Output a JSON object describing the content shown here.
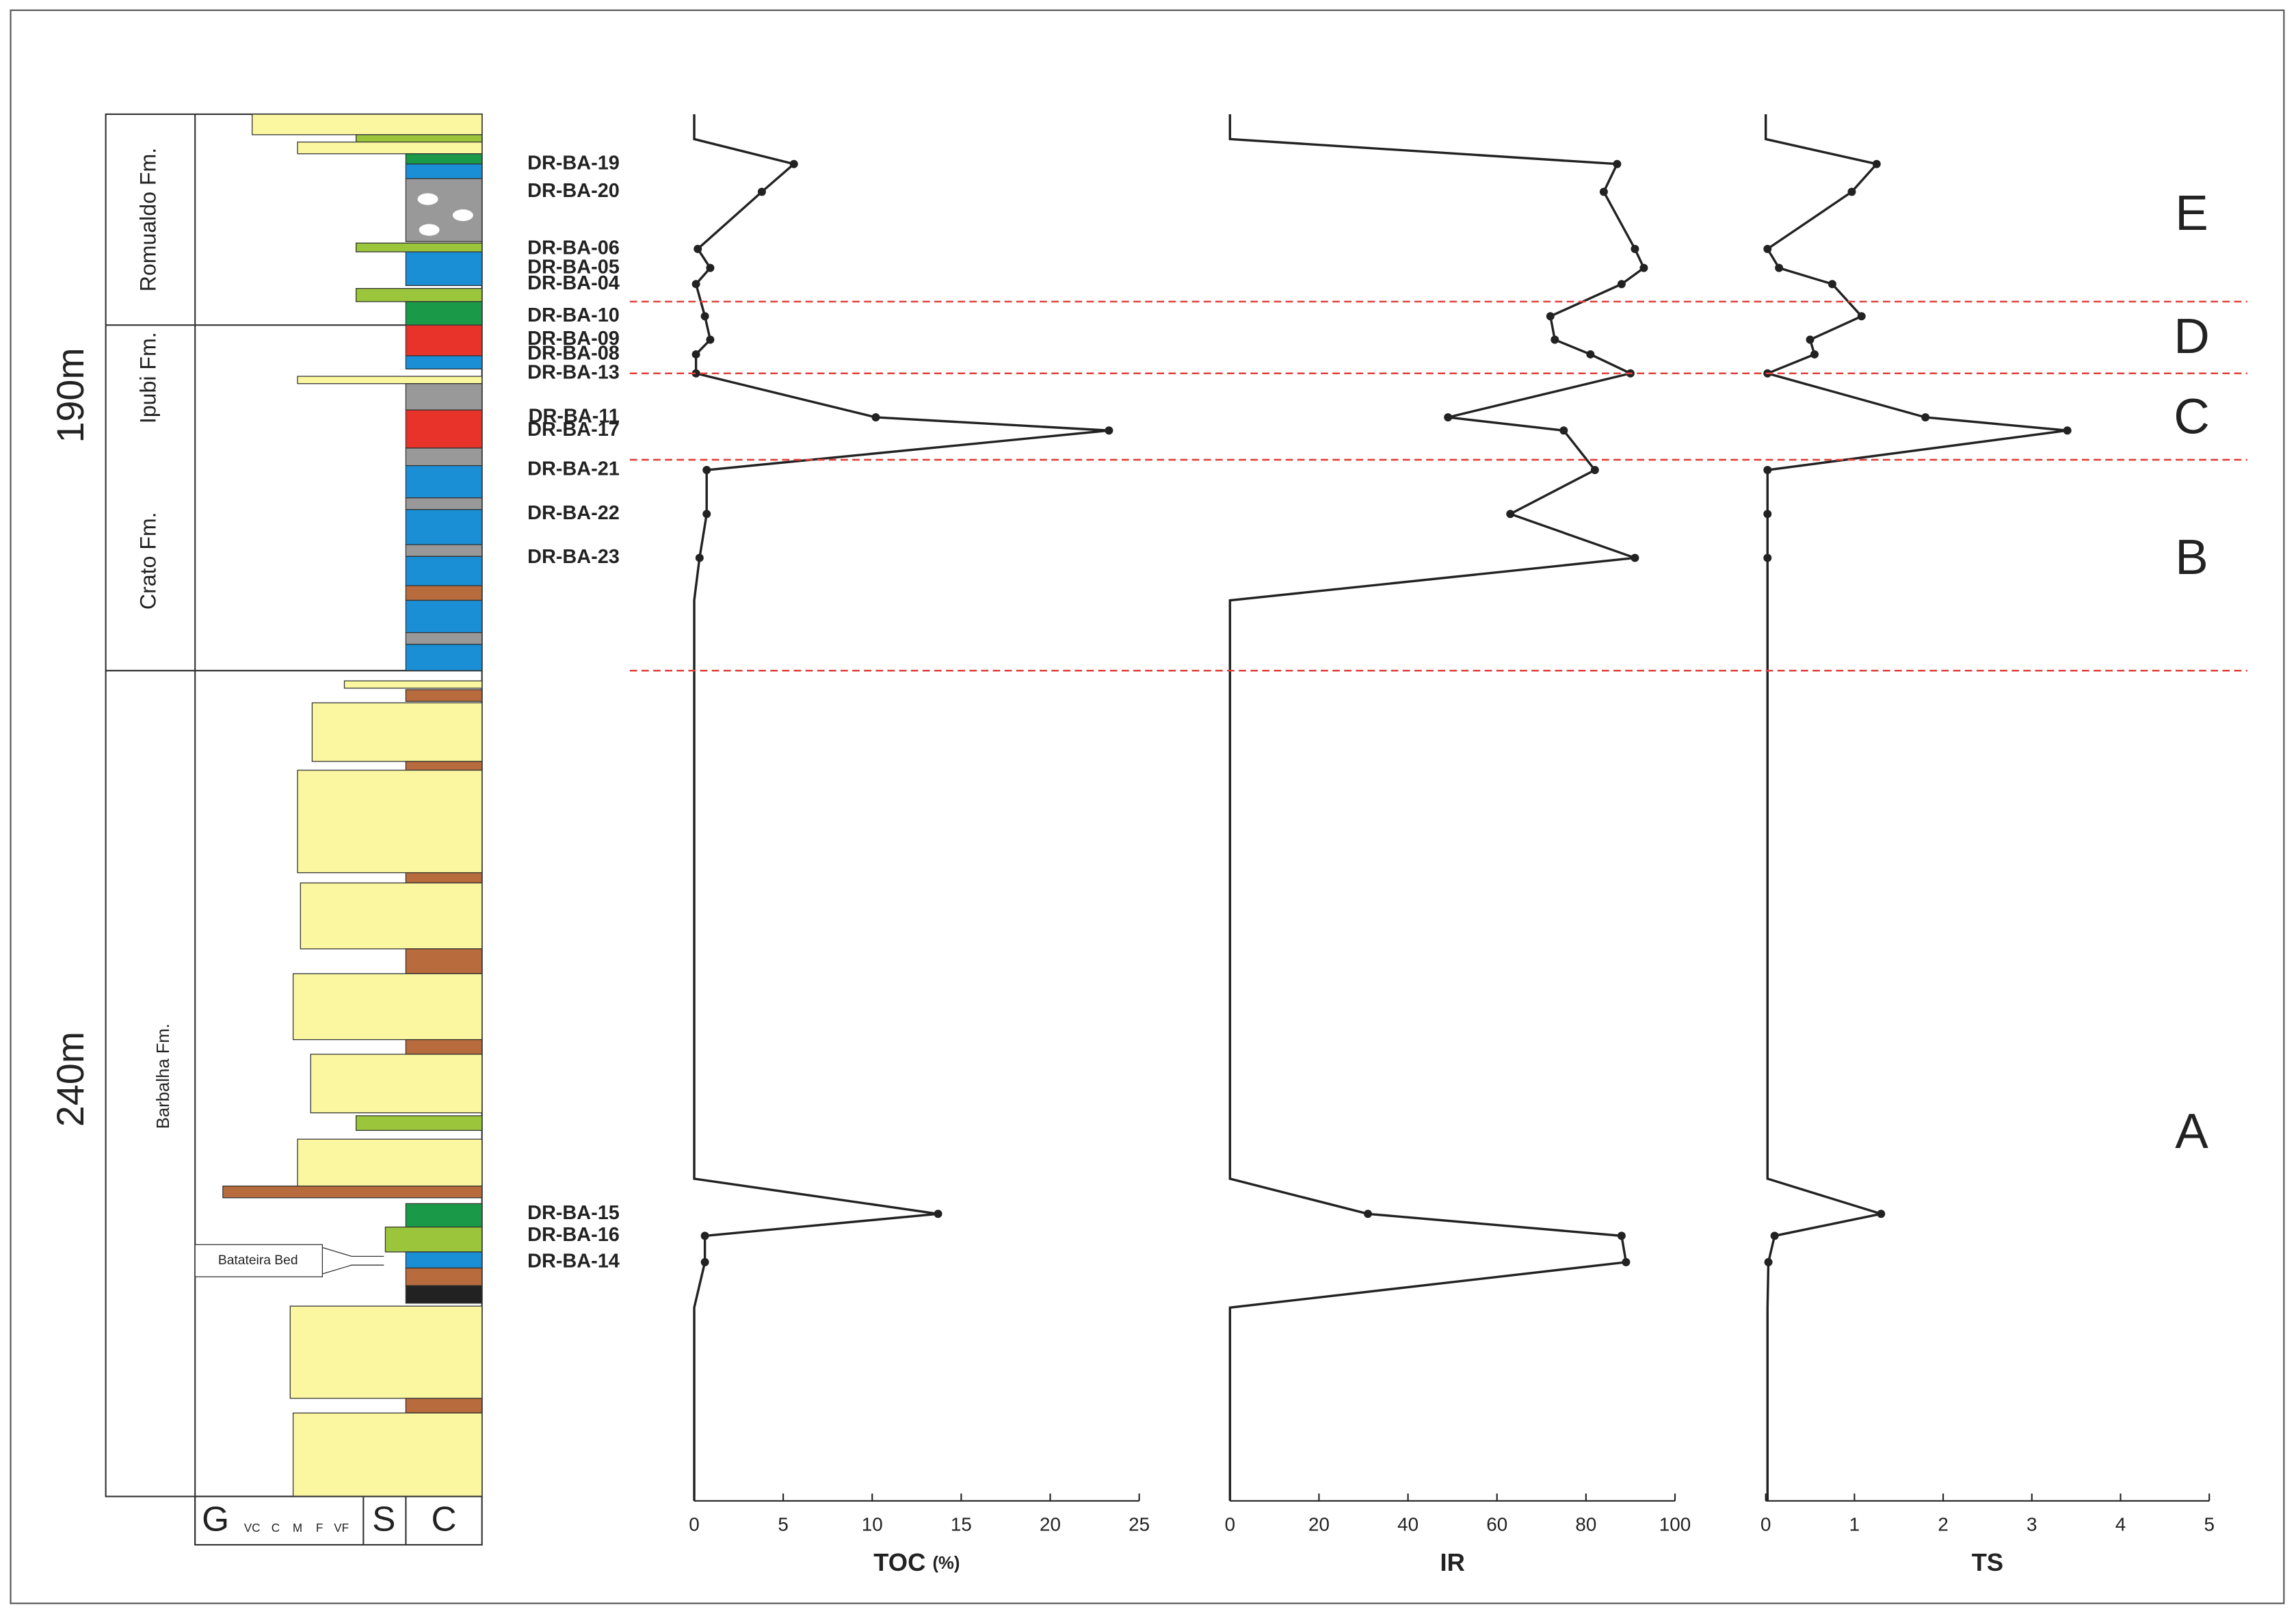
{
  "chart_data": {
    "type": "line",
    "categories": [
      null,
      null,
      "DR-BA-19",
      "DR-BA-20",
      "DR-BA-06",
      "DR-BA-05",
      "DR-BA-04",
      "DR-BA-10",
      "DR-BA-09",
      "DR-BA-08",
      "DR-BA-13",
      "DR-BA-11",
      "DR-BA-17",
      "DR-BA-21",
      "DR-BA-22",
      "DR-BA-23",
      null,
      null,
      "DR-BA-15",
      "DR-BA-16",
      "DR-BA-14",
      null,
      null
    ],
    "series": [
      {
        "name": "TOC",
        "unit": "(%)",
        "color": "#222222",
        "xlim": [
          0,
          25
        ],
        "xticks": [
          0,
          5,
          10,
          15,
          20,
          25
        ],
        "values": [
          0,
          0,
          5.6,
          3.8,
          0.2,
          0.9,
          0.1,
          0.6,
          0.9,
          0.1,
          0.1,
          10.2,
          23.3,
          0.7,
          0.7,
          0.3,
          0,
          0,
          13.7,
          0.6,
          0.6,
          0,
          0
        ]
      },
      {
        "name": "IR",
        "color": "#222222",
        "xlim": [
          0,
          100
        ],
        "xticks": [
          0,
          20,
          40,
          60,
          80,
          100
        ],
        "values": [
          0,
          0,
          87,
          84,
          91,
          93,
          88,
          72,
          73,
          81,
          90,
          49,
          75,
          82,
          63,
          91,
          0,
          0,
          31,
          88,
          89,
          0,
          0
        ]
      },
      {
        "name": "TS",
        "color": "#222222",
        "xlim": [
          0,
          5
        ],
        "xticks": [
          0,
          1,
          2,
          3,
          4,
          5
        ],
        "values": [
          0,
          0,
          1.25,
          0.97,
          0.02,
          0.15,
          0.75,
          1.08,
          0.5,
          0.55,
          0.02,
          1.8,
          3.4,
          0.02,
          0.02,
          0.02,
          0.02,
          0.02,
          1.3,
          0.1,
          0.03,
          0.02,
          0.02
        ]
      }
    ],
    "zones": [
      "E",
      "D",
      "C",
      "B",
      "A"
    ],
    "zone_line_color": "#e0403a",
    "formations": [
      "Romualdo Fm.",
      "Ipubi Fm.",
      "Crato Fm.",
      "Barbalha Fm."
    ],
    "thicknesses": [
      "190m",
      "240m"
    ],
    "grain_size_labels": [
      "G",
      "VC",
      "C",
      "M",
      "F",
      "VF",
      "S",
      "C"
    ],
    "bed_label": "Batateira Bed"
  }
}
